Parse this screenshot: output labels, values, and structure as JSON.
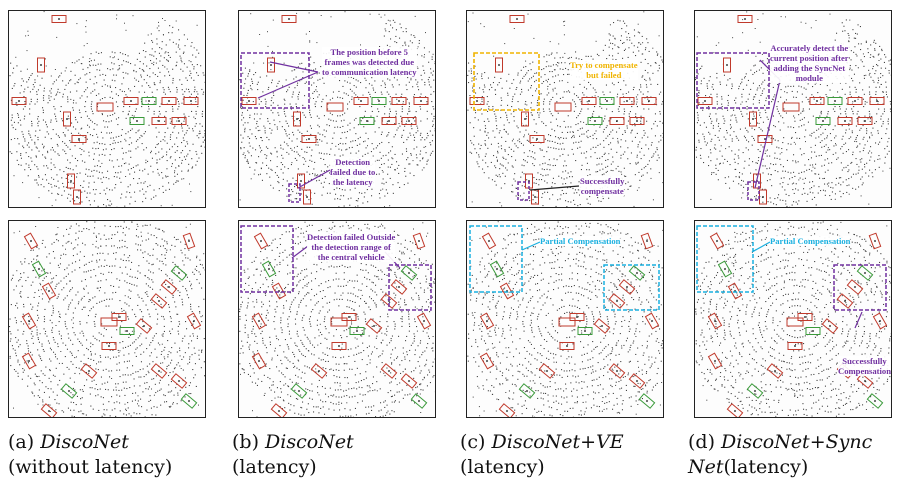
{
  "panels": [
    {
      "id": "a-top",
      "annotations": []
    },
    {
      "id": "b-top",
      "annotations": [
        "The position before 5 frames was detected due to communication latency",
        "Detection failed due to the latency"
      ]
    },
    {
      "id": "c-top",
      "annotations": [
        "Try to compensate but failed",
        "Successfully compensate"
      ]
    },
    {
      "id": "d-top",
      "annotations": [
        "Accurately detect the current position after adding the SyncNet module"
      ]
    },
    {
      "id": "a-bottom",
      "annotations": []
    },
    {
      "id": "b-bottom",
      "annotations": [
        "Detection failed Outside the detection range of the central vehicle"
      ]
    },
    {
      "id": "c-bottom",
      "annotations": [
        "Partial Compensation"
      ]
    },
    {
      "id": "d-bottom",
      "annotations": [
        "Partial Compensation",
        "Successfully Compensation"
      ]
    }
  ],
  "ann": {
    "b_top_1": [
      "The position before 5",
      "frames was detected due",
      "to communication latency"
    ],
    "b_top_2": [
      "Detection",
      "failed due to",
      "the latency"
    ],
    "c_top_1": [
      "Try to compensate",
      "but failed"
    ],
    "c_top_2": [
      "Successfully",
      "compensate"
    ],
    "d_top_1": [
      "Accurately detect the",
      "current position after",
      "adding the SyncNet",
      "module"
    ],
    "b_bot_1": [
      "Detection failed Outside",
      "the detection range of",
      "the central vehicle"
    ],
    "c_bot_1": "Partial Compensation",
    "d_bot_1": "Partial Compensation",
    "d_bot_2": [
      "Successfully",
      "Compensation"
    ]
  },
  "captions": [
    {
      "label": "(a)",
      "name": "DiscoNet",
      "name2": "",
      "rest": "(without latency)"
    },
    {
      "label": "(b)",
      "name": "DiscoNet",
      "name2": "",
      "rest": "(latency)"
    },
    {
      "label": "(c)",
      "name": "DiscoNet+VE",
      "name2": "",
      "rest": "(latency)"
    },
    {
      "label": "(d)",
      "name": "DiscoNet+Sync",
      "name2": "Net",
      "rest": "(latency)"
    }
  ],
  "colors": {
    "ground_truth_box": "#3a9a3a",
    "prediction_box": "#c0392b",
    "annotation_purple": "#7030a0",
    "annotation_orange": "#f0b400",
    "annotation_cyan": "#1ab0e0"
  }
}
